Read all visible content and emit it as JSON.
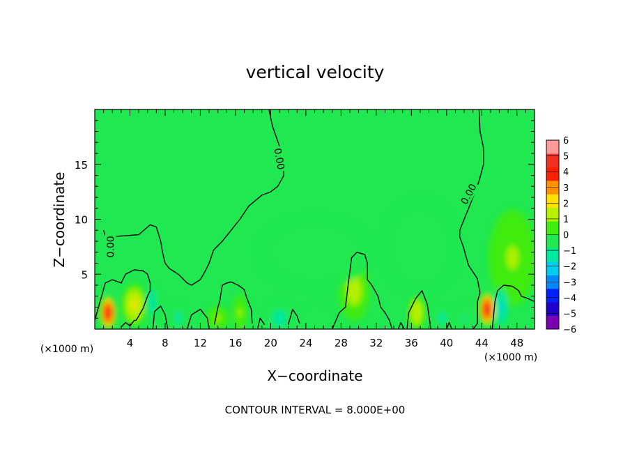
{
  "chart_data": {
    "type": "heatmap",
    "title": "vertical velocity",
    "xlabel": "X−coordinate",
    "ylabel": "Z−coordinate",
    "x_unit_left": "(×1000 m)",
    "x_unit_right": "(×1000 m)",
    "footer": "CONTOUR INTERVAL = 8.000E+00",
    "xlim": [
      0,
      50
    ],
    "ylim": [
      0,
      20
    ],
    "x_ticks": [
      4,
      8,
      12,
      16,
      20,
      24,
      28,
      32,
      36,
      40,
      44,
      48
    ],
    "x_tick_labels": [
      "4",
      "8",
      "12",
      "16",
      "20",
      "24",
      "28",
      "32",
      "36",
      "40",
      "44",
      "48"
    ],
    "y_ticks": [
      5,
      10,
      15
    ],
    "y_tick_labels": [
      "5",
      "10",
      "15"
    ],
    "colorbar": {
      "levels": [
        -6,
        -5,
        -4,
        -3,
        -2,
        -1,
        0,
        1,
        2,
        3,
        4,
        5,
        6
      ],
      "labels": [
        "−6",
        "−5",
        "−4",
        "−3",
        "−2",
        "−1",
        "0",
        "1",
        "2",
        "3",
        "4",
        "5",
        "6"
      ],
      "colors": [
        "#7a00b0",
        "#2200cc",
        "#0022ff",
        "#0088ff",
        "#00ccee",
        "#00e8a0",
        "#20e850",
        "#40ec10",
        "#b8f000",
        "#ffe000",
        "#ff9000",
        "#ff2000",
        "#f03020",
        "#ff9a9a"
      ]
    },
    "background_value": 0,
    "features": [
      {
        "x": 1.5,
        "z": 1.5,
        "value": 5.5,
        "sx": 0.8,
        "sz": 1.3
      },
      {
        "x": 44.6,
        "z": 1.8,
        "value": 5.3,
        "sx": 0.8,
        "sz": 1.3
      },
      {
        "x": 4.5,
        "z": 2.2,
        "value": 2.0,
        "sx": 1.3,
        "sz": 1.8
      },
      {
        "x": 29.5,
        "z": 3.5,
        "value": 1.5,
        "sx": 1.6,
        "sz": 2.5
      },
      {
        "x": 47.5,
        "z": 6.5,
        "value": 1.0,
        "sx": 2.5,
        "sz": 4.0
      },
      {
        "x": 36.6,
        "z": 1.5,
        "value": 1.6,
        "sx": 0.9,
        "sz": 1.4
      },
      {
        "x": 16.5,
        "z": 1.5,
        "value": 1.2,
        "sx": 0.8,
        "sz": 1.5
      },
      {
        "x": 14.0,
        "z": 1.0,
        "value": 1.0,
        "sx": 1.2,
        "sz": 1.0
      },
      {
        "x": 6.5,
        "z": 2.5,
        "value": -1.6,
        "sx": 0.6,
        "sz": 1.4
      },
      {
        "x": 9.5,
        "z": 1.0,
        "value": -1.3,
        "sx": 0.7,
        "sz": 1.2
      },
      {
        "x": 21.0,
        "z": 1.0,
        "value": -1.3,
        "sx": 1.5,
        "sz": 1.5
      },
      {
        "x": 25.5,
        "z": 1.0,
        "value": -1.0,
        "sx": 1.5,
        "sz": 1.2
      },
      {
        "x": 39.5,
        "z": 1.0,
        "value": -1.3,
        "sx": 0.8,
        "sz": 1.0
      },
      {
        "x": 42.0,
        "z": 1.0,
        "value": -1.2,
        "sx": 0.8,
        "sz": 1.2
      },
      {
        "x": 46.2,
        "z": 2.0,
        "value": -2.2,
        "sx": 0.7,
        "sz": 1.5
      },
      {
        "x": 25.0,
        "z": 7.0,
        "value": -0.6,
        "sx": 6.0,
        "sz": 3.0
      },
      {
        "x": 37.0,
        "z": 7.5,
        "value": -0.6,
        "sx": 4.0,
        "sz": 4.0
      }
    ],
    "contour_label": "0.00",
    "contour_labels": [
      {
        "text": "0.00",
        "x": 1.8,
        "z": 7.5,
        "angle": -90
      },
      {
        "text": "0.00",
        "x": 21.0,
        "z": 15.5,
        "angle": 80
      },
      {
        "text": "0.00",
        "x": 42.5,
        "z": 12.3,
        "angle": -62
      }
    ],
    "contours": [
      [
        [
          1.0,
          9.0
        ],
        [
          1.2,
          8.5
        ],
        [
          1.5,
          8.4
        ],
        [
          3.5,
          8.5
        ],
        [
          5.0,
          8.6
        ],
        [
          6.3,
          9.5
        ],
        [
          7.0,
          9.3
        ],
        [
          7.5,
          8.0
        ],
        [
          7.7,
          7.0
        ],
        [
          8.0,
          6.0
        ],
        [
          8.5,
          5.5
        ],
        [
          9.5,
          5.0
        ],
        [
          10.5,
          4.2
        ],
        [
          11.0,
          4.0
        ],
        [
          12.0,
          4.5
        ],
        [
          12.5,
          5.2
        ],
        [
          13.0,
          6.0
        ],
        [
          13.5,
          7.2
        ],
        [
          14.5,
          8.0
        ],
        [
          15.5,
          9.0
        ],
        [
          16.5,
          10.0
        ],
        [
          17.5,
          11.2
        ],
        [
          19.0,
          12.2
        ],
        [
          20.0,
          12.5
        ],
        [
          20.8,
          13.0
        ],
        [
          21.5,
          14.0
        ],
        [
          21.5,
          15.5
        ],
        [
          20.2,
          18.5
        ],
        [
          19.8,
          20.0
        ]
      ],
      [
        [
          0.0,
          0.8
        ],
        [
          0.6,
          2.5
        ],
        [
          1.2,
          4.2
        ],
        [
          2.0,
          4.5
        ],
        [
          3.0,
          4.2
        ],
        [
          3.5,
          5.0
        ],
        [
          4.5,
          5.4
        ],
        [
          5.5,
          5.3
        ],
        [
          6.0,
          5.0
        ],
        [
          6.3,
          4.2
        ],
        [
          6.3,
          3.5
        ],
        [
          6.0,
          3.0
        ],
        [
          5.5,
          1.9
        ],
        [
          5.0,
          1.2
        ],
        [
          4.7,
          0.8
        ],
        [
          4.5,
          0.8
        ],
        [
          4.0,
          0.3
        ],
        [
          3.5,
          0.6
        ],
        [
          3.0,
          0.2
        ]
      ],
      [
        [
          6.6,
          0.0
        ],
        [
          6.8,
          1.6
        ],
        [
          7.5,
          2.1
        ],
        [
          8.0,
          1.3
        ],
        [
          8.3,
          0.0
        ]
      ],
      [
        [
          10.5,
          0.0
        ],
        [
          11.0,
          1.3
        ],
        [
          12.0,
          1.8
        ],
        [
          12.8,
          1.0
        ],
        [
          13.0,
          0.0
        ]
      ],
      [
        [
          13.6,
          0.4
        ],
        [
          14.0,
          2.0
        ],
        [
          14.2,
          2.5
        ],
        [
          14.5,
          4.0
        ],
        [
          15.0,
          4.2
        ],
        [
          15.5,
          4.3
        ],
        [
          16.3,
          4.0
        ],
        [
          17.0,
          3.6
        ],
        [
          17.3,
          2.8
        ],
        [
          17.8,
          1.8
        ],
        [
          17.9,
          0.5
        ]
      ],
      [
        [
          18.5,
          0.0
        ],
        [
          18.8,
          1.0
        ],
        [
          19.3,
          0.4
        ]
      ],
      [
        [
          22.0,
          0.4
        ],
        [
          22.5,
          1.8
        ],
        [
          23.0,
          1.2
        ],
        [
          23.3,
          0.5
        ]
      ],
      [
        [
          27.0,
          0.0
        ],
        [
          27.8,
          1.5
        ],
        [
          28.5,
          2.0
        ],
        [
          28.8,
          4.0
        ],
        [
          29.2,
          6.5
        ],
        [
          29.8,
          7.0
        ],
        [
          30.7,
          6.8
        ],
        [
          31.0,
          6.0
        ],
        [
          31.0,
          4.5
        ],
        [
          31.5,
          4.0
        ],
        [
          32.2,
          3.0
        ],
        [
          32.5,
          2.0
        ],
        [
          33.0,
          1.5
        ],
        [
          33.5,
          0.8
        ],
        [
          33.8,
          0.0
        ]
      ],
      [
        [
          34.5,
          0.0
        ],
        [
          34.8,
          0.6
        ],
        [
          35.2,
          0.0
        ]
      ],
      [
        [
          35.5,
          0.0
        ],
        [
          35.7,
          1.5
        ],
        [
          36.5,
          2.8
        ],
        [
          37.2,
          3.5
        ],
        [
          37.8,
          2.3
        ],
        [
          38.0,
          1.2
        ],
        [
          38.2,
          0.0
        ]
      ],
      [
        [
          40.0,
          0.0
        ],
        [
          40.3,
          0.6
        ],
        [
          40.6,
          0.0
        ]
      ],
      [
        [
          43.0,
          0.0
        ],
        [
          43.5,
          0.5
        ],
        [
          43.5,
          2.5
        ],
        [
          43.8,
          3.3
        ],
        [
          43.5,
          4.6
        ],
        [
          42.5,
          5.8
        ],
        [
          41.9,
          7.5
        ],
        [
          41.5,
          8.4
        ],
        [
          41.5,
          9.0
        ],
        [
          42.0,
          10.0
        ],
        [
          42.5,
          11.0
        ],
        [
          43.0,
          12.0
        ],
        [
          43.7,
          13.5
        ],
        [
          44.2,
          15.0
        ],
        [
          44.2,
          16.5
        ],
        [
          43.8,
          18.0
        ],
        [
          43.7,
          20.0
        ]
      ],
      [
        [
          45.2,
          0.0
        ],
        [
          45.5,
          2.5
        ],
        [
          45.8,
          3.5
        ],
        [
          46.5,
          4.0
        ],
        [
          47.5,
          3.9
        ],
        [
          48.2,
          3.5
        ],
        [
          48.5,
          3.0
        ],
        [
          49.2,
          2.8
        ],
        [
          50.0,
          2.5
        ]
      ]
    ]
  }
}
